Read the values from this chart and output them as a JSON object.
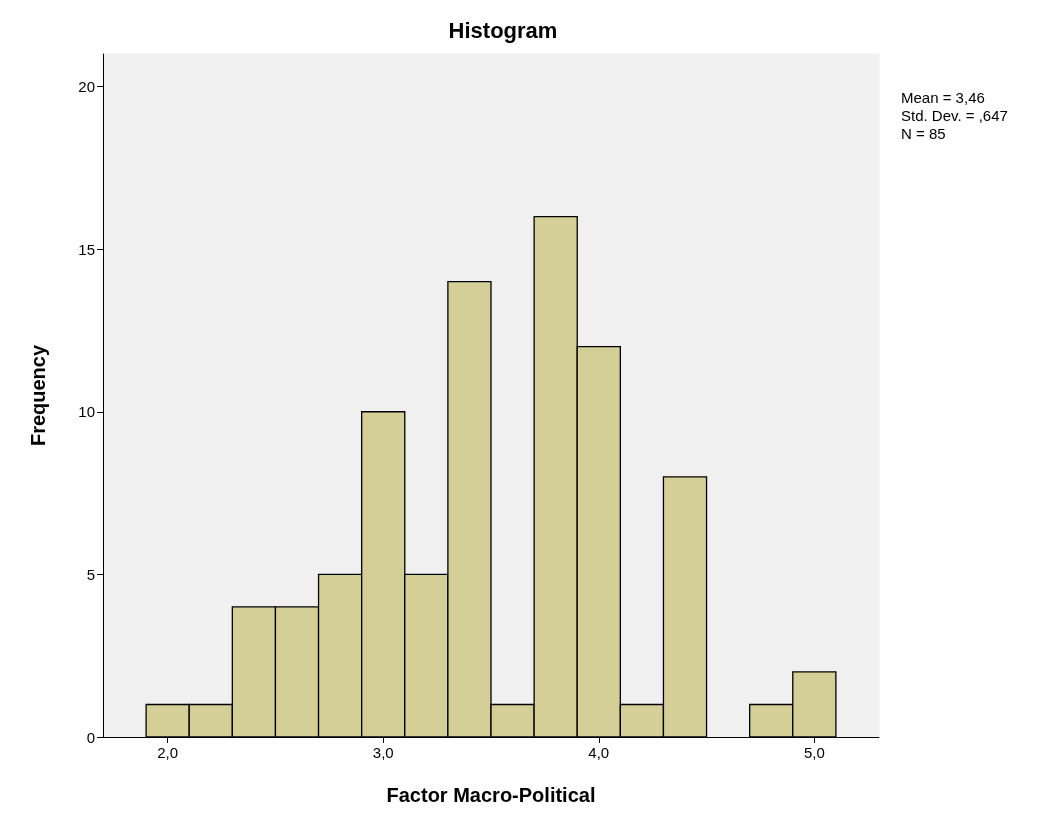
{
  "chart_data": {
    "type": "histogram",
    "title": "Histogram",
    "xlabel": "Factor Macro-Political",
    "ylabel": "Frequency",
    "bins": [
      1.9,
      2.1,
      2.3,
      2.5,
      2.7,
      2.9,
      3.1,
      3.3,
      3.5,
      3.7,
      3.9,
      4.1,
      4.3,
      4.5,
      4.7,
      4.9,
      5.1
    ],
    "values": [
      1,
      1,
      4,
      4,
      5,
      10,
      5,
      14,
      1,
      16,
      12,
      1,
      8,
      0,
      1,
      2
    ],
    "color": "#d4cf96",
    "xlim": [
      1.7,
      5.3
    ],
    "xticks": [
      {
        "value": 2,
        "label": "2,0"
      },
      {
        "value": 3,
        "label": "3,0"
      },
      {
        "value": 4,
        "label": "4,0"
      },
      {
        "value": 5,
        "label": "5,0"
      }
    ],
    "ylim": [
      0,
      21
    ],
    "yticks": [
      0,
      5,
      10,
      15,
      20
    ],
    "grid": false,
    "annotations": [
      "Mean = 3,46",
      "Std. Dev. = ,647",
      "N = 85"
    ]
  }
}
